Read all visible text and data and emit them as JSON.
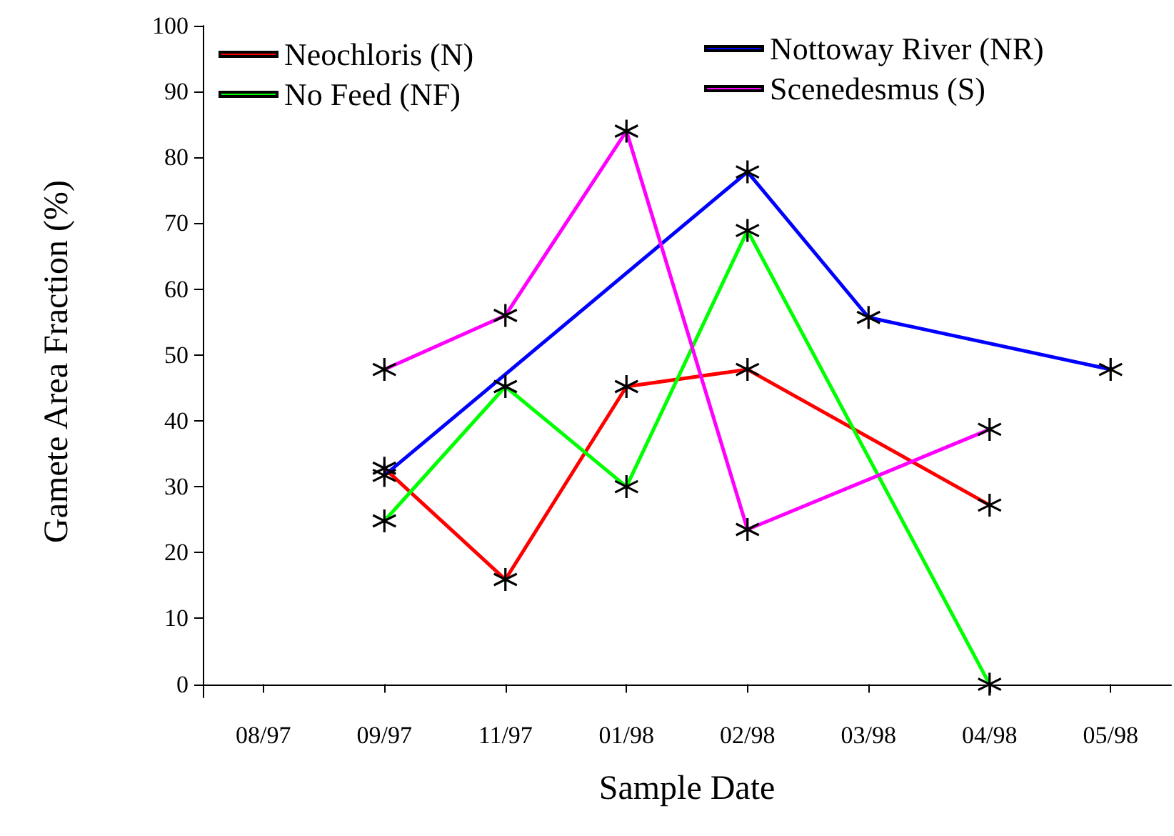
{
  "chart_data": {
    "type": "line",
    "xlabel": "Sample Date",
    "ylabel": "Gamete Area Fraction (%)",
    "categories": [
      "08/97",
      "09/97",
      "11/97",
      "01/98",
      "02/98",
      "03/98",
      "04/98",
      "05/98"
    ],
    "series": [
      {
        "name": "Neochloris (N)",
        "color": "#ff0000",
        "values": [
          null,
          32.8,
          15.9,
          45.2,
          47.8,
          null,
          27.2,
          null
        ]
      },
      {
        "name": "No Feed (NF)",
        "color": "#00ff00",
        "values": [
          null,
          24.8,
          45.2,
          30,
          68.9,
          null,
          0,
          null
        ]
      },
      {
        "name": "Nottoway River (NR)",
        "color": "#0000ff",
        "values": [
          null,
          31.7,
          null,
          null,
          77.8,
          55.7,
          null,
          47.8
        ]
      },
      {
        "name": "Scenedesmus (S)",
        "color": "#ff00ff",
        "values": [
          null,
          47.8,
          56,
          84,
          23.5,
          null,
          38.7,
          null
        ]
      }
    ],
    "ylim": [
      -2,
      100
    ],
    "yticks": [
      0,
      10,
      20,
      30,
      40,
      50,
      60,
      70,
      80,
      90,
      100
    ],
    "grid": false,
    "legend": "top left",
    "marker": "cross",
    "line_style": "solid"
  }
}
